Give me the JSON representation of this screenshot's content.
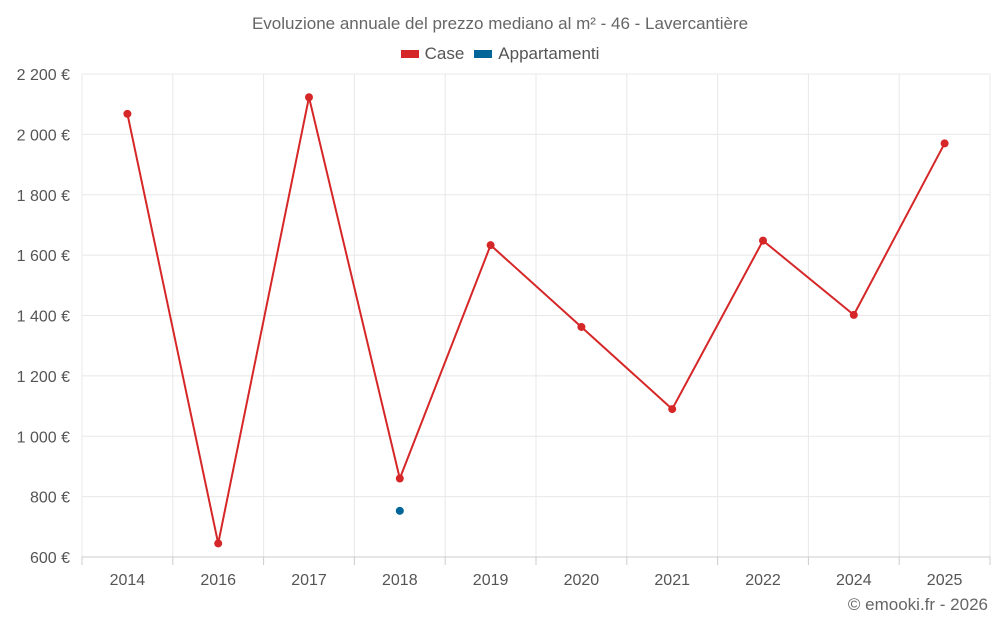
{
  "colors": {
    "case": "#d62728",
    "appartamenti": "#006699",
    "grid": "#e8e8e8",
    "axis": "#cccccc",
    "text": "#555555"
  },
  "footer": "© emooki.fr - 2026",
  "chart_data": {
    "type": "line",
    "title": "Evoluzione annuale del prezzo mediano al m² - 46 - Lavercantière",
    "xlabel": "",
    "ylabel": "",
    "categories": [
      "2014",
      "2016",
      "2017",
      "2018",
      "2019",
      "2020",
      "2021",
      "2022",
      "2024",
      "2025"
    ],
    "ylim": [
      600,
      2200
    ],
    "yticks": [
      600,
      800,
      1000,
      1200,
      1400,
      1600,
      1800,
      2000,
      2200
    ],
    "ytick_labels": [
      "600 €",
      "800 €",
      "1 000 €",
      "1 200 €",
      "1 400 €",
      "1 600 €",
      "1 800 €",
      "2 000 €",
      "2 200 €"
    ],
    "grid": true,
    "legend_position": "top-center",
    "series": [
      {
        "name": "Case",
        "values": [
          2068,
          645,
          2123,
          860,
          1633,
          1362,
          1090,
          1648,
          1402,
          1970
        ]
      },
      {
        "name": "Appartamenti",
        "values": [
          null,
          null,
          null,
          753,
          null,
          null,
          null,
          null,
          null,
          null
        ]
      }
    ]
  }
}
